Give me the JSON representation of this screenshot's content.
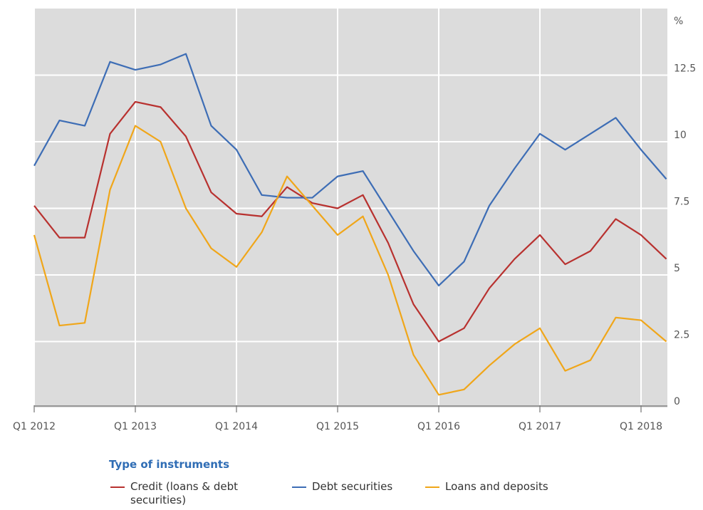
{
  "chart_data": {
    "type": "line",
    "y_unit": "%",
    "categories": [
      "Q1 2012",
      null,
      null,
      null,
      "Q1 2013",
      null,
      null,
      null,
      "Q1 2014",
      null,
      null,
      null,
      "Q1 2015",
      null,
      null,
      null,
      "Q1 2016",
      null,
      null,
      null,
      "Q1 2017",
      null,
      null,
      null,
      "Q1 2018",
      null
    ],
    "series": [
      {
        "name": "Credit (loans & debt securities)",
        "color": "#b8312f",
        "values": [
          7.6,
          6.4,
          6.4,
          10.3,
          11.5,
          11.3,
          10.2,
          8.1,
          7.3,
          7.2,
          8.3,
          7.7,
          7.5,
          8.0,
          6.2,
          3.9,
          2.5,
          3.0,
          4.5,
          5.6,
          6.5,
          5.4,
          5.9,
          7.1,
          6.5,
          5.6
        ]
      },
      {
        "name": "Debt securities",
        "color": "#3d6db5",
        "values": [
          9.1,
          10.8,
          10.6,
          13.0,
          12.7,
          12.9,
          13.3,
          10.6,
          9.7,
          8.0,
          7.9,
          7.9,
          8.7,
          8.9,
          7.4,
          5.9,
          4.6,
          5.5,
          7.6,
          9.0,
          10.3,
          9.7,
          10.3,
          10.9,
          9.7,
          8.6
        ]
      },
      {
        "name": "Loans and deposits",
        "color": "#f0a619",
        "values": [
          6.5,
          3.1,
          3.2,
          8.2,
          10.6,
          10.0,
          7.5,
          6.0,
          5.3,
          6.6,
          8.7,
          7.6,
          6.5,
          7.2,
          5.0,
          2.0,
          0.5,
          0.7,
          1.6,
          2.4,
          3.0,
          1.4,
          1.8,
          3.4,
          3.3,
          2.5
        ]
      }
    ],
    "ylim": [
      0,
      15
    ],
    "yticks": [
      0,
      2.5,
      5,
      7.5,
      10,
      12.5
    ],
    "grid": true,
    "legend_title": "Type of instruments",
    "legend_position": "bottom"
  }
}
